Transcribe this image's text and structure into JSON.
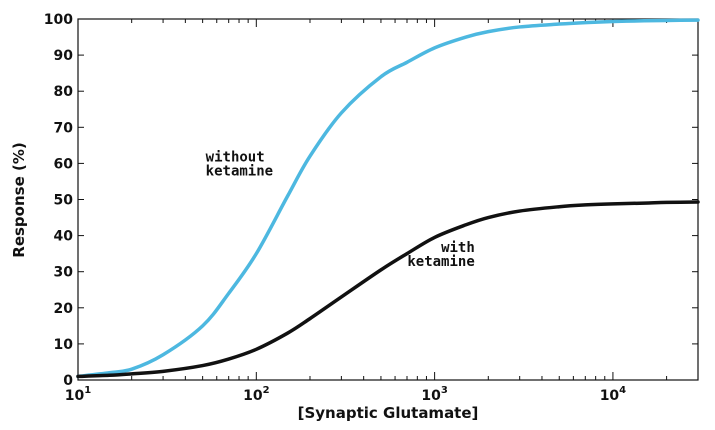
{
  "chart_data": {
    "type": "line",
    "xlabel": "[Synaptic Glutamate]",
    "ylabel": "Response (%)",
    "x_scale": "log",
    "xlim": [
      10,
      30000
    ],
    "ylim": [
      0,
      100
    ],
    "grid": false,
    "x_ticks": [
      {
        "value": 10,
        "base": "10",
        "exp": "1"
      },
      {
        "value": 100,
        "base": "10",
        "exp": "2"
      },
      {
        "value": 1000,
        "base": "10",
        "exp": "3"
      },
      {
        "value": 10000,
        "base": "10",
        "exp": "4"
      }
    ],
    "y_ticks": [
      0,
      10,
      20,
      30,
      40,
      50,
      60,
      70,
      80,
      90,
      100
    ],
    "x": [
      10,
      15,
      20,
      30,
      50,
      70,
      100,
      150,
      200,
      300,
      500,
      700,
      1000,
      1500,
      2000,
      3000,
      5000,
      7000,
      10000,
      15000,
      20000,
      30000
    ],
    "series": [
      {
        "label_lines": [
          "without",
          "ketamine"
        ],
        "color": "#4db8e0",
        "values": [
          1,
          2,
          3,
          7,
          15,
          24,
          35,
          51,
          62,
          74,
          84,
          88,
          92,
          95,
          96.5,
          97.8,
          98.6,
          99,
          99.3,
          99.5,
          99.6,
          99.7
        ]
      },
      {
        "label_lines": [
          "with",
          "ketamine"
        ],
        "color": "#111111",
        "values": [
          1,
          1.3,
          1.7,
          2.4,
          4,
          5.8,
          8.5,
          13,
          17,
          23,
          30.5,
          35,
          39.5,
          43,
          45,
          46.8,
          48,
          48.5,
          48.8,
          49,
          49.2,
          49.3
        ]
      }
    ]
  }
}
